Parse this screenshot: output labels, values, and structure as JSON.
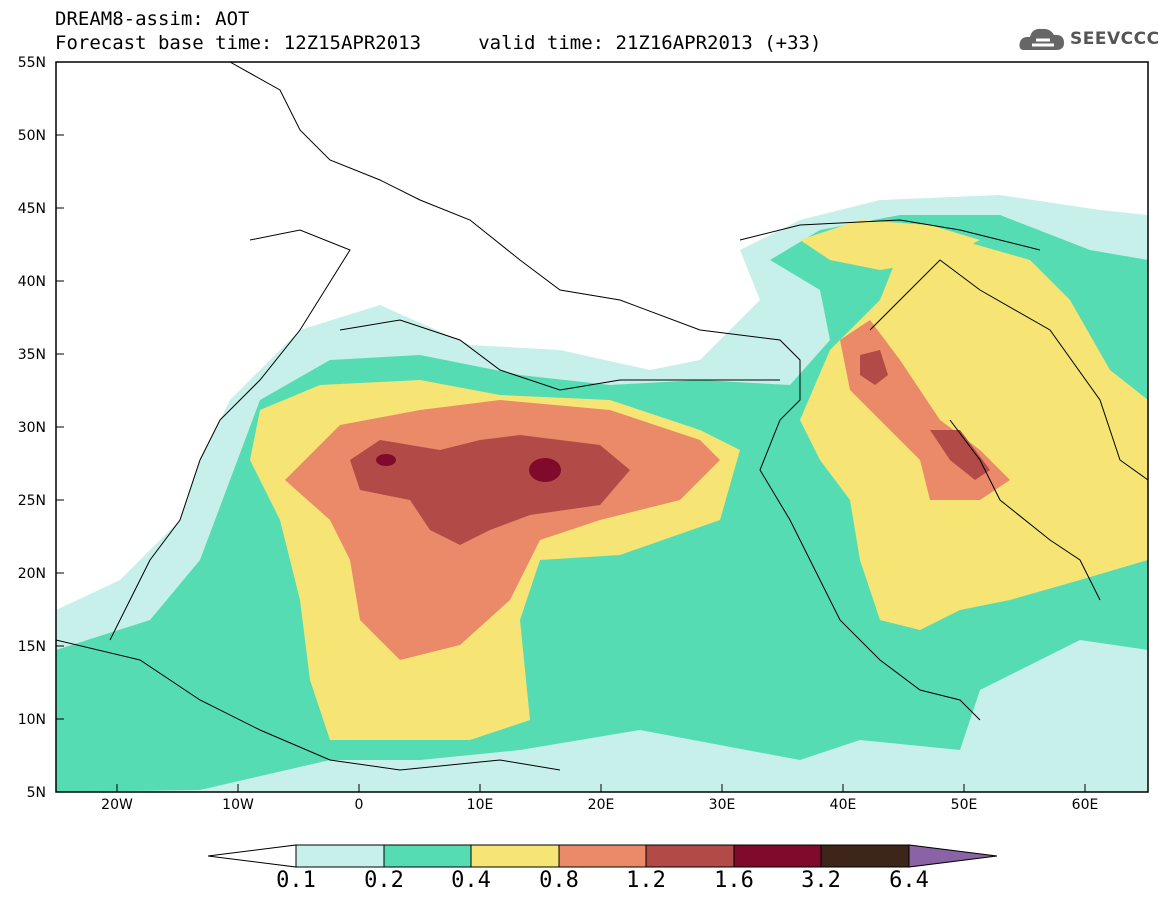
{
  "header": {
    "line1": "DREAM8-assim: AOT",
    "line2": "Forecast base time: 12Z15APR2013     valid time: 21Z16APR2013 (+33)",
    "logo_text": "SEEVCCC",
    "logo_icon": "cloud-icon"
  },
  "map": {
    "lat_labels": [
      "55N",
      "50N",
      "45N",
      "40N",
      "35N",
      "30N",
      "25N",
      "20N",
      "15N",
      "10N",
      "5N"
    ],
    "lon_labels": [
      "20W",
      "10W",
      "0",
      "10E",
      "20E",
      "30E",
      "40E",
      "50E",
      "60E"
    ],
    "extent": {
      "lon_min": -25,
      "lon_max": 65,
      "lat_min": 5,
      "lat_max": 55
    }
  },
  "colorbar": {
    "labels": [
      "0.1",
      "0.2",
      "0.4",
      "0.8",
      "1.2",
      "1.6",
      "3.2",
      "6.4"
    ],
    "colors": [
      "#ffffff",
      "#c7f0ea",
      "#56dcb2",
      "#f6e474",
      "#eb8a69",
      "#b24a47",
      "#7f0a2b",
      "#3d2619",
      "#8a63a6"
    ]
  }
}
